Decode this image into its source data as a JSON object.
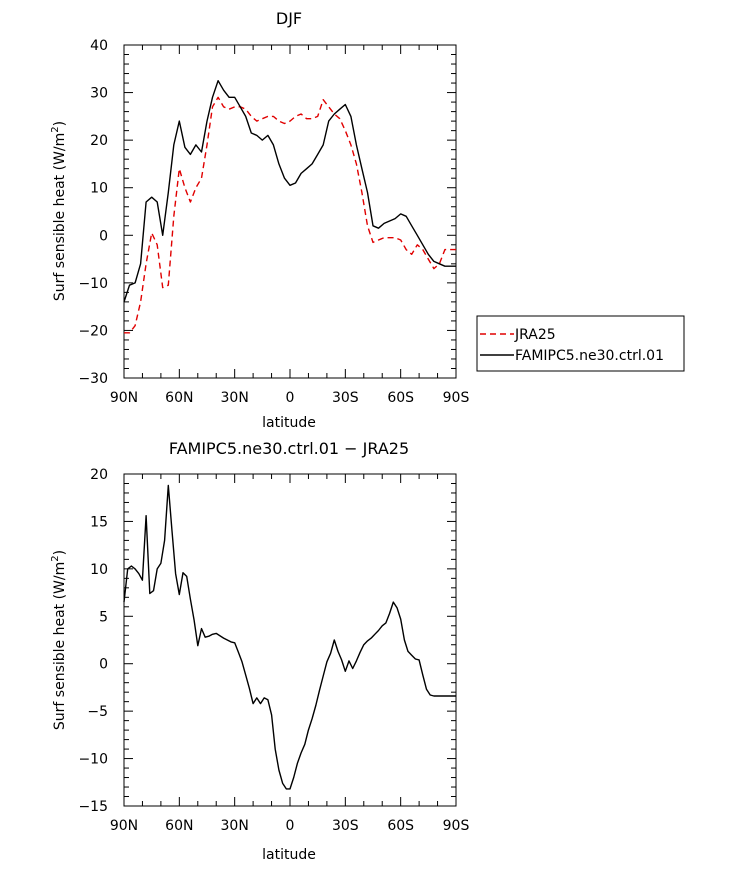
{
  "chart_data": [
    {
      "type": "line",
      "title": "DJF",
      "xlabel": "latitude",
      "ylabel_parts": [
        "Surf sensible heat (W/m",
        "2",
        ")"
      ],
      "xlim": [
        90,
        -90
      ],
      "ylim": [
        -30,
        40
      ],
      "x_ticks": [
        {
          "value": 90,
          "label": "90N"
        },
        {
          "value": 60,
          "label": "60N"
        },
        {
          "value": 30,
          "label": "30N"
        },
        {
          "value": 0,
          "label": "0"
        },
        {
          "value": -30,
          "label": "30S"
        },
        {
          "value": -60,
          "label": "60S"
        },
        {
          "value": -90,
          "label": "90S"
        }
      ],
      "y_ticks": [
        {
          "value": 40,
          "label": "40"
        },
        {
          "value": 30,
          "label": "30"
        },
        {
          "value": 20,
          "label": "20"
        },
        {
          "value": 10,
          "label": "10"
        },
        {
          "value": 0,
          "label": "0"
        },
        {
          "value": -10,
          "label": "−10"
        },
        {
          "value": -20,
          "label": "−20"
        },
        {
          "value": -30,
          "label": "−30"
        }
      ],
      "legend": {
        "placement": "right",
        "entries": [
          {
            "label": "JRA25",
            "color": "#e00000",
            "style": "dashed"
          },
          {
            "label": "FAMIPC5.ne30.ctrl.01",
            "color": "#000000",
            "style": "solid"
          }
        ]
      },
      "series": [
        {
          "name": "JRA25",
          "color": "#e00000",
          "style": "dashed",
          "x": [
            90,
            87,
            84,
            81,
            78,
            75,
            72,
            69,
            66,
            63,
            60,
            57,
            54,
            51,
            48,
            45,
            42,
            39,
            36,
            33,
            30,
            27,
            24,
            21,
            18,
            15,
            12,
            9,
            6,
            3,
            0,
            -3,
            -6,
            -9,
            -12,
            -15,
            -18,
            -21,
            -24,
            -27,
            -30,
            -33,
            -36,
            -39,
            -42,
            -45,
            -48,
            -51,
            -54,
            -57,
            -60,
            -63,
            -66,
            -69,
            -72,
            -75,
            -78,
            -81,
            -84,
            -87,
            -90
          ],
          "y": [
            -20.5,
            -20.5,
            -19,
            -14,
            -6,
            0.5,
            -2,
            -11,
            -10.5,
            4,
            14,
            10,
            7,
            10,
            12,
            19,
            27,
            29,
            27,
            26.5,
            27,
            27,
            26.5,
            25,
            24,
            24.5,
            25,
            25,
            24,
            23.5,
            24,
            25,
            25.5,
            24.5,
            24.5,
            25,
            28.5,
            27,
            25.5,
            24.5,
            22,
            19,
            15,
            9,
            2,
            -1.5,
            -1,
            -0.5,
            -0.5,
            -0.5,
            -1,
            -3,
            -4,
            -2,
            -3,
            -5,
            -7,
            -6,
            -3,
            -3,
            -3
          ]
        },
        {
          "name": "FAMIPC5.ne30.ctrl.01",
          "color": "#000000",
          "style": "solid",
          "x": [
            90,
            87,
            84,
            81,
            78,
            75,
            72,
            69,
            66,
            63,
            60,
            57,
            54,
            51,
            48,
            45,
            42,
            39,
            36,
            33,
            30,
            27,
            24,
            21,
            18,
            15,
            12,
            9,
            6,
            3,
            0,
            -3,
            -6,
            -9,
            -12,
            -15,
            -18,
            -21,
            -24,
            -27,
            -30,
            -33,
            -36,
            -39,
            -42,
            -45,
            -48,
            -51,
            -54,
            -57,
            -60,
            -63,
            -66,
            -69,
            -72,
            -75,
            -78,
            -81,
            -84,
            -87,
            -90
          ],
          "y": [
            -14,
            -10.5,
            -10,
            -6,
            7,
            8,
            7,
            0,
            9,
            19,
            24,
            18.5,
            17,
            19,
            17.5,
            24,
            29,
            32.5,
            30.5,
            29,
            29,
            27,
            25,
            21.5,
            21,
            20,
            21,
            19,
            15,
            12,
            10.5,
            11,
            13,
            14,
            15,
            17,
            19,
            24,
            25.5,
            26.5,
            27.5,
            25,
            19,
            14,
            9,
            2,
            1.5,
            2.5,
            3,
            3.5,
            4.5,
            4,
            2,
            0,
            -2,
            -4,
            -5.5,
            -6,
            -6.5,
            -6.5,
            -6.5
          ]
        }
      ]
    },
    {
      "type": "line",
      "title": "FAMIPC5.ne30.ctrl.01 − JRA25",
      "xlabel": "latitude",
      "ylabel_parts": [
        "Surf sensible heat (W/m",
        "2",
        ")"
      ],
      "xlim": [
        90,
        -90
      ],
      "ylim": [
        -15,
        20
      ],
      "x_ticks": [
        {
          "value": 90,
          "label": "90N"
        },
        {
          "value": 60,
          "label": "60N"
        },
        {
          "value": 30,
          "label": "30N"
        },
        {
          "value": 0,
          "label": "0"
        },
        {
          "value": -30,
          "label": "30S"
        },
        {
          "value": -60,
          "label": "60S"
        },
        {
          "value": -90,
          "label": "90S"
        }
      ],
      "y_ticks": [
        {
          "value": 20,
          "label": "20"
        },
        {
          "value": 15,
          "label": "15"
        },
        {
          "value": 10,
          "label": "10"
        },
        {
          "value": 5,
          "label": "5"
        },
        {
          "value": 0,
          "label": "0"
        },
        {
          "value": -5,
          "label": "−5"
        },
        {
          "value": -10,
          "label": "−10"
        },
        {
          "value": -15,
          "label": "−15"
        }
      ],
      "series": [
        {
          "name": "FAMIPC5.ne30.ctrl.01 - JRA25",
          "color": "#000000",
          "style": "solid",
          "x": [
            90,
            88,
            86,
            84,
            82,
            80,
            78,
            76,
            74,
            72,
            70,
            68,
            66,
            64,
            62,
            60,
            58,
            56,
            54,
            52,
            50,
            48,
            46,
            44,
            42,
            40,
            36,
            32,
            30,
            28,
            26,
            24,
            22,
            20,
            18,
            16,
            14,
            12,
            10,
            8,
            6,
            4,
            2,
            0,
            -2,
            -4,
            -6,
            -8,
            -10,
            -12,
            -14,
            -16,
            -18,
            -20,
            -22,
            -24,
            -26,
            -28,
            -30,
            -32,
            -34,
            -36,
            -38,
            -40,
            -42,
            -44,
            -46,
            -48,
            -50,
            -52,
            -54,
            -56,
            -58,
            -60,
            -62,
            -64,
            -66,
            -68,
            -70,
            -72,
            -74,
            -76,
            -78,
            -80,
            -82,
            -84,
            -86,
            -88,
            -90
          ],
          "y": [
            6.5,
            10,
            10.3,
            10,
            9.5,
            8.8,
            15.6,
            7.4,
            7.7,
            10,
            10.6,
            13,
            18.8,
            14,
            9.5,
            7.3,
            9.6,
            9.2,
            6.8,
            4.6,
            1.9,
            3.7,
            2.8,
            2.9,
            3.1,
            3.2,
            2.7,
            2.3,
            2.2,
            1.2,
            0.2,
            -1.2,
            -2.6,
            -4.2,
            -3.6,
            -4.2,
            -3.6,
            -3.8,
            -5.4,
            -9,
            -11.2,
            -12.6,
            -13.2,
            -13.2,
            -12,
            -10.5,
            -9.4,
            -8.5,
            -7,
            -5.8,
            -4.4,
            -2.8,
            -1.3,
            0.2,
            1.1,
            2.5,
            1.3,
            0.4,
            -0.8,
            0.3,
            -0.5,
            0.3,
            1.2,
            2,
            2.4,
            2.7,
            3.1,
            3.5,
            4,
            4.3,
            5.3,
            6.5,
            5.9,
            4.7,
            2.5,
            1.3,
            0.9,
            0.5,
            0.4,
            -1.2,
            -2.7,
            -3.3,
            -3.4,
            -3.4,
            -3.4,
            -3.4,
            -3.4,
            -3.4,
            -3.4
          ]
        }
      ]
    }
  ]
}
